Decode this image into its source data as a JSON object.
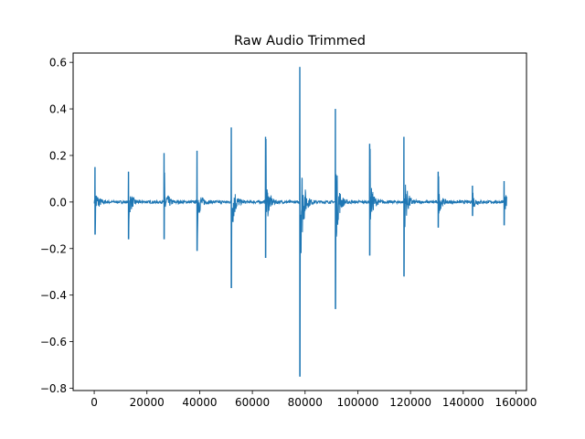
{
  "chart_data": {
    "type": "line",
    "title": "Raw Audio Trimmed",
    "xlabel": "",
    "ylabel": "",
    "xlim": [
      -8000,
      164000
    ],
    "ylim": [
      -0.81,
      0.64
    ],
    "grid": false,
    "legend": "none",
    "x_ticks": [
      {
        "value": 0,
        "label": "0"
      },
      {
        "value": 20000,
        "label": "20000"
      },
      {
        "value": 40000,
        "label": "40000"
      },
      {
        "value": 60000,
        "label": "60000"
      },
      {
        "value": 80000,
        "label": "80000"
      },
      {
        "value": 100000,
        "label": "100000"
      },
      {
        "value": 120000,
        "label": "120000"
      },
      {
        "value": 140000,
        "label": "140000"
      },
      {
        "value": 160000,
        "label": "160000"
      }
    ],
    "y_ticks": [
      {
        "value": 0.6,
        "label": "0.6"
      },
      {
        "value": 0.4,
        "label": "0.4"
      },
      {
        "value": 0.2,
        "label": "0.2"
      },
      {
        "value": 0.0,
        "label": "0.0"
      },
      {
        "value": -0.2,
        "label": "−0.2"
      },
      {
        "value": -0.4,
        "label": "−0.4"
      },
      {
        "value": -0.6,
        "label": "−0.6"
      },
      {
        "value": -0.8,
        "label": "−0.8"
      }
    ],
    "series": [
      {
        "color": "#1f77b4",
        "x_start": 0,
        "x_end": 156500,
        "baseline": 0.0,
        "onsets": [
          {
            "x": 300,
            "pos": 0.15,
            "neg": -0.14
          },
          {
            "x": 13000,
            "pos": 0.13,
            "neg": -0.16
          },
          {
            "x": 26500,
            "pos": 0.21,
            "neg": -0.16
          },
          {
            "x": 39000,
            "pos": 0.22,
            "neg": -0.21
          },
          {
            "x": 52000,
            "pos": 0.32,
            "neg": -0.37
          },
          {
            "x": 65000,
            "pos": 0.28,
            "neg": -0.24
          },
          {
            "x": 78000,
            "pos": 0.58,
            "neg": -0.75
          },
          {
            "x": 91500,
            "pos": 0.4,
            "neg": -0.46
          },
          {
            "x": 104500,
            "pos": 0.25,
            "neg": -0.23
          },
          {
            "x": 117500,
            "pos": 0.28,
            "neg": -0.32
          },
          {
            "x": 130500,
            "pos": 0.13,
            "neg": -0.11
          },
          {
            "x": 143500,
            "pos": 0.07,
            "neg": -0.06
          },
          {
            "x": 155500,
            "pos": 0.09,
            "neg": -0.1
          }
        ]
      }
    ]
  }
}
